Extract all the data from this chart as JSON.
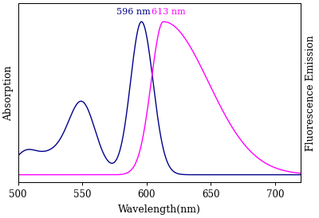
{
  "title": "",
  "xlabel": "Wavelength(nm)",
  "ylabel_left": "Absorption",
  "ylabel_right": "Fluorescence Emission",
  "xlim": [
    500,
    720
  ],
  "xticks": [
    500,
    550,
    600,
    650,
    700
  ],
  "absorption_peak": 596,
  "emission_peak": 613,
  "absorption_color": "#00008B",
  "emission_color": "#FF00FF",
  "annotation_absorption": "596 nm",
  "annotation_emission": "613 nm",
  "background_color": "#FFFFFF",
  "xlabel_fontsize": 9,
  "ylabel_fontsize": 9,
  "annot_fontsize": 8
}
